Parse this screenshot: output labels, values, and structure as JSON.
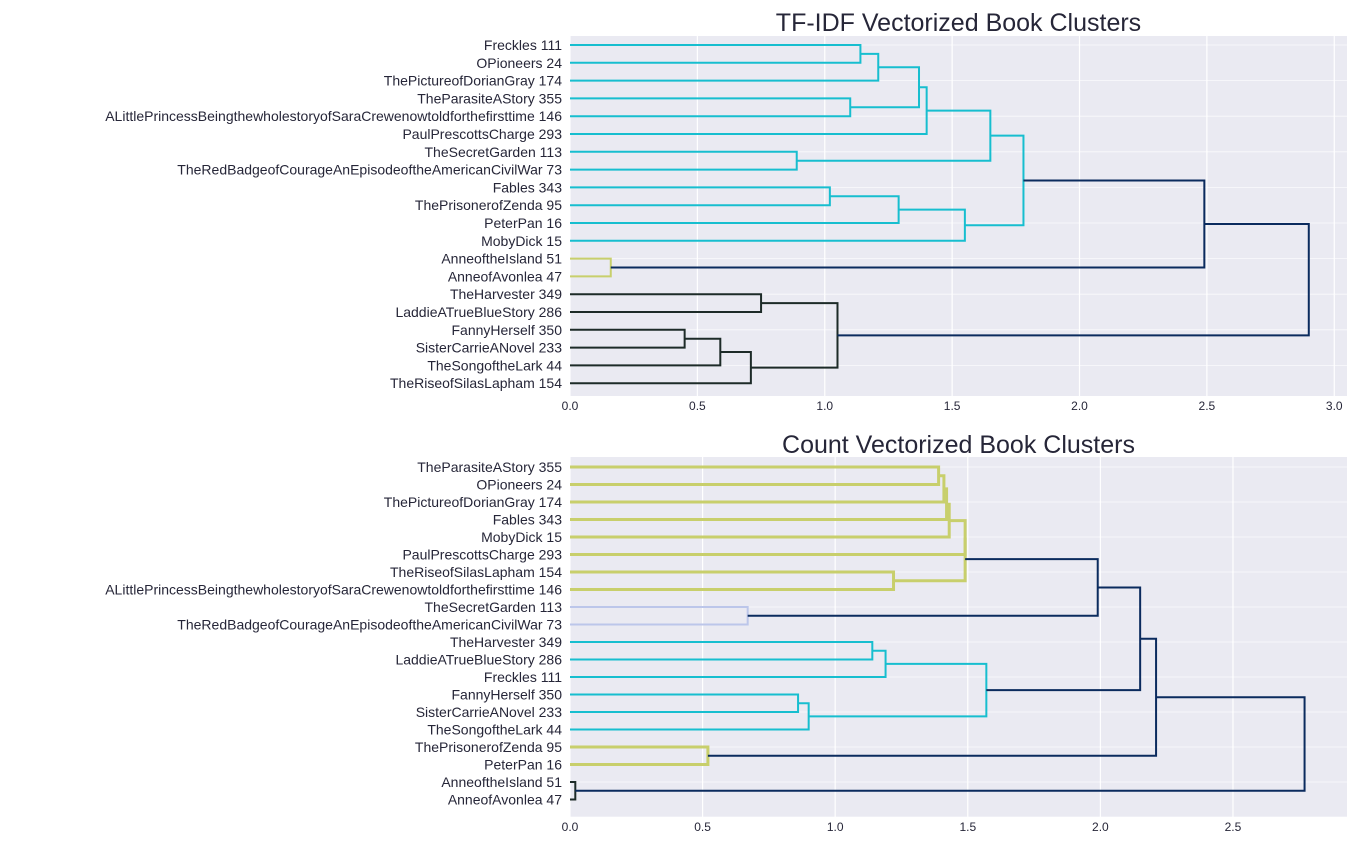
{
  "colors": {
    "plot_background": "#eaeaf2",
    "grid": "#ffffff",
    "text": "#262638",
    "cyan": "#17becf",
    "olive": "#c8cf6c",
    "navy": "#0b2b5e",
    "dark": "#1d2b28",
    "pale_blue": "#bcc6ea"
  },
  "chart_data": [
    {
      "type": "dendrogram",
      "title": "TF-IDF Vectorized Book Clusters",
      "orientation": "right",
      "xlim": [
        0,
        3.05
      ],
      "xticks": [
        "0.0",
        "0.5",
        "1.0",
        "1.5",
        "2.0",
        "2.5",
        "3.0"
      ],
      "xtick_values": [
        0,
        0.5,
        1,
        1.5,
        2,
        2.5,
        3
      ],
      "grid": true,
      "leaves": [
        "Freckles  111",
        "OPioneers  24",
        "ThePictureofDorianGray  174",
        "TheParasiteAStory  355",
        "ALittlePrincessBeingthewholestoryofSaraCrewenowtoldforthefirsttime  146",
        "PaulPrescottsCharge  293",
        "TheSecretGarden  113",
        "TheRedBadgeofCourageAnEpisodeoftheAmericanCivilWar  73",
        "Fables  343",
        "ThePrisonerofZenda  95",
        "PeterPan  16",
        "MobyDick  15",
        "AnneoftheIsland  51",
        "AnneofAvonlea  47",
        "TheHarvester  349",
        "LaddieATrueBlueStory  286",
        "FannyHerself  350",
        "SisterCarrieANovel  233",
        "TheSongoftheLark  44",
        "TheRiseofSilasLapham  154"
      ],
      "merges": [
        {
          "id": "A",
          "left": 0,
          "right": 1,
          "distance": 1.14,
          "color": "cyan"
        },
        {
          "id": "B",
          "left": "A",
          "right": 2,
          "distance": 1.21,
          "color": "cyan"
        },
        {
          "id": "C",
          "left": 3,
          "right": 4,
          "distance": 1.1,
          "color": "cyan"
        },
        {
          "id": "D",
          "left": "B",
          "right": "C",
          "distance": 1.37,
          "color": "cyan"
        },
        {
          "id": "E",
          "left": "D",
          "right": 5,
          "distance": 1.4,
          "color": "cyan"
        },
        {
          "id": "F",
          "left": 6,
          "right": 7,
          "distance": 0.89,
          "color": "cyan"
        },
        {
          "id": "G",
          "left": "E",
          "right": "F",
          "distance": 1.65,
          "color": "cyan"
        },
        {
          "id": "H",
          "left": 8,
          "right": 9,
          "distance": 1.02,
          "color": "cyan"
        },
        {
          "id": "I",
          "left": "H",
          "right": 10,
          "distance": 1.29,
          "color": "cyan"
        },
        {
          "id": "J",
          "left": "I",
          "right": 11,
          "distance": 1.55,
          "color": "cyan"
        },
        {
          "id": "K",
          "left": "G",
          "right": "J",
          "distance": 1.78,
          "color": "cyan"
        },
        {
          "id": "L",
          "left": 12,
          "right": 13,
          "distance": 0.16,
          "color": "olive"
        },
        {
          "id": "M",
          "left": "K",
          "right": "L",
          "distance": 2.49,
          "color": "navy"
        },
        {
          "id": "N",
          "left": 14,
          "right": 15,
          "distance": 0.75,
          "color": "dark"
        },
        {
          "id": "O",
          "left": 16,
          "right": 17,
          "distance": 0.45,
          "color": "dark"
        },
        {
          "id": "P",
          "left": "O",
          "right": 18,
          "distance": 0.59,
          "color": "dark"
        },
        {
          "id": "Q",
          "left": "P",
          "right": 19,
          "distance": 0.71,
          "color": "dark"
        },
        {
          "id": "R",
          "left": "N",
          "right": "Q",
          "distance": 1.05,
          "color": "dark"
        },
        {
          "id": "S",
          "left": "M",
          "right": "R",
          "distance": 2.9,
          "color": "navy"
        }
      ]
    },
    {
      "type": "dendrogram",
      "title": "Count Vectorized Book Clusters",
      "orientation": "right",
      "xlim": [
        0,
        2.93
      ],
      "xticks": [
        "0.0",
        "0.5",
        "1.0",
        "1.5",
        "2.0",
        "2.5"
      ],
      "xtick_values": [
        0,
        0.5,
        1,
        1.5,
        2,
        2.5
      ],
      "grid": true,
      "leaves": [
        "TheParasiteAStory  355",
        "OPioneers  24",
        "ThePictureofDorianGray  174",
        "Fables  343",
        "MobyDick  15",
        "PaulPrescottsCharge  293",
        "TheRiseofSilasLapham  154",
        "ALittlePrincessBeingthewholestoryofSaraCrewenowtoldforthefirsttime  146",
        "TheSecretGarden  113",
        "TheRedBadgeofCourageAnEpisodeoftheAmericanCivilWar  73",
        "TheHarvester  349",
        "LaddieATrueBlueStory  286",
        "Freckles  111",
        "FannyHerself  350",
        "SisterCarrieANovel  233",
        "TheSongoftheLark  44",
        "ThePrisonerofZenda  95",
        "PeterPan  16",
        "AnneoftheIsland  51",
        "AnneofAvonlea  47"
      ],
      "merges": [
        {
          "id": "A",
          "left": 0,
          "right": 1,
          "distance": 1.39,
          "color": "olive"
        },
        {
          "id": "B",
          "left": "A",
          "right": 2,
          "distance": 1.41,
          "color": "olive"
        },
        {
          "id": "C",
          "left": "B",
          "right": 3,
          "distance": 1.42,
          "color": "olive"
        },
        {
          "id": "D",
          "left": "C",
          "right": 4,
          "distance": 1.43,
          "color": "olive"
        },
        {
          "id": "E",
          "left": "D",
          "right": 5,
          "distance": 1.49,
          "color": "olive"
        },
        {
          "id": "F",
          "left": 6,
          "right": 7,
          "distance": 1.22,
          "color": "olive"
        },
        {
          "id": "G",
          "left": "E",
          "right": "F",
          "distance": 1.49,
          "color": "olive"
        },
        {
          "id": "H",
          "left": 8,
          "right": 9,
          "distance": 0.67,
          "color": "pale_blue"
        },
        {
          "id": "I",
          "left": "G",
          "right": "H",
          "distance": 1.99,
          "color": "navy"
        },
        {
          "id": "J",
          "left": 10,
          "right": 11,
          "distance": 1.14,
          "color": "cyan"
        },
        {
          "id": "K",
          "left": "J",
          "right": 12,
          "distance": 1.19,
          "color": "cyan"
        },
        {
          "id": "L",
          "left": 13,
          "right": 14,
          "distance": 0.86,
          "color": "cyan"
        },
        {
          "id": "M",
          "left": "L",
          "right": 15,
          "distance": 0.9,
          "color": "cyan"
        },
        {
          "id": "N",
          "left": "K",
          "right": "M",
          "distance": 1.57,
          "color": "cyan"
        },
        {
          "id": "O",
          "left": "I",
          "right": "N",
          "distance": 2.15,
          "color": "navy"
        },
        {
          "id": "P",
          "left": 16,
          "right": 17,
          "distance": 0.52,
          "color": "olive"
        },
        {
          "id": "Q",
          "left": "O",
          "right": "P",
          "distance": 2.21,
          "color": "navy"
        },
        {
          "id": "R",
          "left": 18,
          "right": 19,
          "distance": 0.02,
          "color": "dark"
        },
        {
          "id": "S",
          "left": "Q",
          "right": "R",
          "distance": 2.77,
          "color": "navy"
        }
      ]
    }
  ]
}
